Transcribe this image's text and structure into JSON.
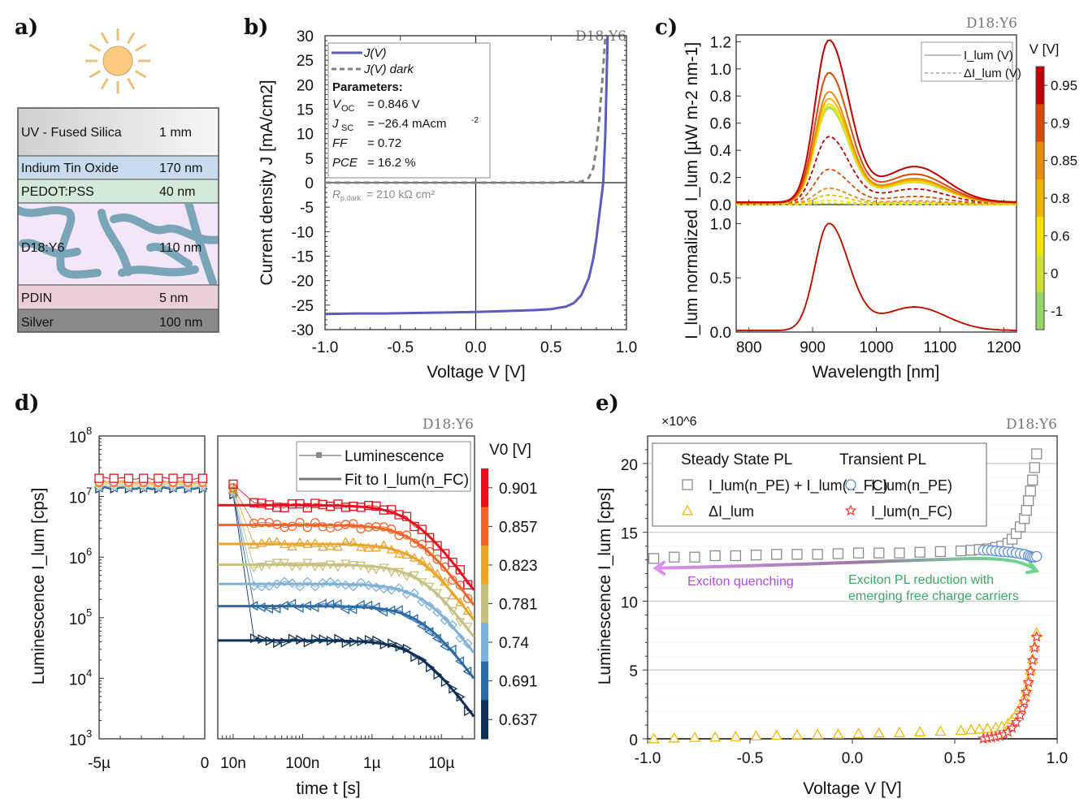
{
  "figure": {
    "panel_labels": [
      "a)",
      "b)",
      "c)",
      "d)",
      "e)"
    ],
    "sample_label": "D18:Y6"
  },
  "panel_a": {
    "icon": "sun-icon",
    "layers": [
      {
        "name": "UV - Fused Silica",
        "thickness": "1 mm",
        "color": "#e4e4e4"
      },
      {
        "name": "Indium Tin Oxide",
        "thickness": "170 nm",
        "color": "#c9dbef"
      },
      {
        "name": "PEDOT:PSS",
        "thickness": "40 nm",
        "color": "#d3eadb"
      },
      {
        "name": "D18:Y6",
        "thickness": "110 nm",
        "color": "#f3e6f8",
        "pattern_color": "#7aa5b8"
      },
      {
        "name": "PDIN",
        "thickness": "5 nm",
        "color": "#ebcfd8"
      },
      {
        "name": "Silver",
        "thickness": "100 nm",
        "color": "#8a8a8a"
      }
    ]
  },
  "chart_data": [
    {
      "id": "b",
      "type": "line",
      "title": "D18:Y6",
      "xlabel": "Voltage V [V]",
      "ylabel": "Current density J [mA/cm2]",
      "xlim": [
        -1.0,
        1.0
      ],
      "ylim": [
        -30,
        30
      ],
      "xticks": [
        "-1.0",
        "-0.5",
        "0.0",
        "0.5",
        "1.0"
      ],
      "yticks": [
        "-30",
        "-25",
        "-20",
        "-15",
        "-10",
        "-5",
        "0",
        "5",
        "10",
        "15",
        "20",
        "25",
        "30"
      ],
      "series": [
        {
          "name": "J(V)",
          "style": "solid",
          "color": "#5b5bbf",
          "x": [
            -1.0,
            -0.8,
            -0.6,
            -0.4,
            -0.2,
            0.0,
            0.2,
            0.4,
            0.5,
            0.6,
            0.65,
            0.7,
            0.75,
            0.78,
            0.8,
            0.82,
            0.84,
            0.846,
            0.86,
            0.875
          ],
          "y": [
            -26.8,
            -26.7,
            -26.7,
            -26.6,
            -26.5,
            -26.4,
            -26.2,
            -26.0,
            -25.8,
            -25.3,
            -24.6,
            -23.0,
            -19.5,
            -15.5,
            -11.5,
            -6.5,
            -1.5,
            0.0,
            10.0,
            30.0
          ]
        },
        {
          "name": "J(V) dark",
          "style": "dashed",
          "color": "#808080",
          "x": [
            -1.0,
            -0.5,
            0.0,
            0.5,
            0.7,
            0.75,
            0.78,
            0.8,
            0.82,
            0.84,
            0.86
          ],
          "y": [
            0.0,
            0.0,
            0.0,
            0.0,
            0.2,
            1.0,
            3.0,
            7.0,
            13.0,
            21.0,
            30.0
          ]
        }
      ],
      "legend": {
        "position": "top-left",
        "entries": [
          "J(V)",
          "J(V) dark"
        ]
      },
      "annotations": {
        "parameters_title": "Parameters:",
        "params": [
          {
            "label": "V",
            "sub": "OC",
            "value": "= 0.846 V"
          },
          {
            "label": "J",
            "sub": "SC",
            "value": "= −26.4 mAcm",
            "sup": "-2"
          },
          {
            "label": "FF",
            "sub": "",
            "value": "= 0.72"
          },
          {
            "label": "PCE",
            "sub": "",
            "value": "= 16.2 %"
          }
        ],
        "rp_label": "R",
        "rp_sub": "p,dark",
        "rp_value": "= 210 kΩ cm²"
      }
    },
    {
      "id": "c",
      "type": "line",
      "title": "D18:Y6",
      "xlabel": "Wavelength [nm]",
      "ylabel_top": "I_lum [µW m-2 nm-1]",
      "ylabel_bottom": "I_lum normalized",
      "xlim": [
        780,
        1220
      ],
      "xticks": [
        "800",
        "900",
        "1000",
        "1100",
        "1200"
      ],
      "ylim_top": [
        0,
        1.25
      ],
      "yticks_top": [
        "0.0",
        "0.2",
        "0.4",
        "0.6",
        "0.8",
        "1.0",
        "1.2"
      ],
      "ylim_bottom": [
        0,
        1.1
      ],
      "yticks_bottom": [
        "0.0",
        "0.5",
        "1.0"
      ],
      "peak_nm": 925,
      "colorbar": {
        "label": "V [V]",
        "ticks": [
          "0.95",
          "0.9",
          "0.85",
          "0.8",
          "0.6",
          "0",
          "-1"
        ],
        "colors": [
          "#c00000",
          "#d94a0a",
          "#e88a0c",
          "#efb800",
          "#f5e400",
          "#cde033",
          "#97d56a"
        ]
      },
      "series_solid_peaks": [
        {
          "V": 0.95,
          "peak": 1.21,
          "color": "#c00000"
        },
        {
          "V": 0.9,
          "peak": 0.97,
          "color": "#d94a0a"
        },
        {
          "V": 0.85,
          "peak": 0.83,
          "color": "#e88a0c"
        },
        {
          "V": 0.8,
          "peak": 0.78,
          "color": "#efb800"
        },
        {
          "V": 0.6,
          "peak": 0.74,
          "color": "#f5e400"
        },
        {
          "V": 0,
          "peak": 0.72,
          "color": "#cde033"
        },
        {
          "V": -1,
          "peak": 0.71,
          "color": "#97d56a"
        }
      ],
      "series_dashed_peaks": [
        {
          "V": 0.95,
          "peak": 0.5,
          "color": "#c00000"
        },
        {
          "V": 0.9,
          "peak": 0.26,
          "color": "#d94a0a"
        },
        {
          "V": 0.85,
          "peak": 0.12,
          "color": "#e88a0c"
        },
        {
          "V": 0.8,
          "peak": 0.07,
          "color": "#efb800"
        },
        {
          "V": 0.6,
          "peak": 0.03,
          "color": "#f5e400"
        },
        {
          "V": 0,
          "peak": 0.01,
          "color": "#cde033"
        }
      ],
      "legend": {
        "position": "top-right",
        "entries": [
          "I_lum (V)",
          "ΔI_lum (V)"
        ]
      }
    },
    {
      "id": "d",
      "type": "scatter",
      "title": "D18:Y6",
      "xlabel": "time t [s]",
      "ylabel": "Luminescence I_lum [cps]",
      "yscale": "log",
      "ylim": [
        1000,
        100000000
      ],
      "yticks": [
        "10^3",
        "10^4",
        "10^5",
        "10^6",
        "10^7",
        "10^8"
      ],
      "left_xticks": [
        "-5µ",
        "0"
      ],
      "right_xticks": [
        "10n",
        "100n",
        "1µ",
        "10µ"
      ],
      "right_xlim": [
        6e-09,
        3e-05
      ],
      "legend": {
        "position": "top-right",
        "entries": [
          "Luminescence",
          "Fit to I_lum(n_FC)"
        ]
      },
      "colorbar": {
        "label": "V0 [V]",
        "ticks": [
          "0.901",
          "0.857",
          "0.823",
          "0.781",
          "0.74",
          "0.691",
          "0.637"
        ],
        "colors": [
          "#e8101e",
          "#f0642a",
          "#eba52c",
          "#c6c181",
          "#7fb2d8",
          "#2a6aa6",
          "#0d2f55"
        ]
      },
      "series": [
        {
          "V0": 0.901,
          "plateau": 7200000,
          "tau": 4e-06,
          "marker": "square",
          "color": "#e8101e",
          "pre": 20000000
        },
        {
          "V0": 0.857,
          "plateau": 3400000,
          "tau": 4.5e-06,
          "marker": "circle",
          "color": "#f0642a",
          "pre": 17500000
        },
        {
          "V0": 0.823,
          "plateau": 1650000,
          "tau": 5e-06,
          "marker": "triangle-up",
          "color": "#eba52c",
          "pre": 16500000
        },
        {
          "V0": 0.781,
          "plateau": 750000,
          "tau": 5.5e-06,
          "marker": "triangle-down",
          "color": "#c6c181",
          "pre": 15500000
        },
        {
          "V0": 0.74,
          "plateau": 360000,
          "tau": 6e-06,
          "marker": "diamond",
          "color": "#7fb2d8",
          "pre": 14500000
        },
        {
          "V0": 0.691,
          "plateau": 155000,
          "tau": 5.5e-06,
          "marker": "triangle-left",
          "color": "#2a6aa6",
          "pre": 14000000
        },
        {
          "V0": 0.637,
          "plateau": 42000,
          "tau": 5e-06,
          "marker": "triangle-right",
          "color": "#0d2f55",
          "pre": 13500000
        }
      ]
    },
    {
      "id": "e",
      "type": "scatter",
      "title": "D18:Y6",
      "xlabel": "Voltage V [V]",
      "ylabel": "Luminescence I_lum [cps]",
      "multiplier": "×10^6",
      "xlim": [
        -1.0,
        1.0
      ],
      "ylim": [
        0,
        22
      ],
      "xticks": [
        "-1.0",
        "-0.5",
        "0.0",
        "0.5",
        "1.0"
      ],
      "yticks": [
        "0",
        "5",
        "10",
        "15",
        "20"
      ],
      "legend": {
        "position": "top",
        "group1_title": "Steady State PL",
        "group2_title": "Transient PL",
        "entries": [
          "I_lum(n_PE) + I_lum(n_FC)",
          "ΔI_lum",
          "I_lum(n_PE)",
          "I_lum(n_FC)"
        ]
      },
      "annotations": {
        "left_arrow": "Exciton quenching",
        "right_arrow_line1": "Exciton PL reduction with",
        "right_arrow_line2": "emerging free charge carriers"
      },
      "series": [
        {
          "name": "I_lum(n_PE) + I_lum(n_FC)",
          "marker": "square",
          "color": "#8c8c8c",
          "x": [
            -0.97,
            -0.87,
            -0.77,
            -0.67,
            -0.57,
            -0.47,
            -0.37,
            -0.27,
            -0.17,
            -0.07,
            0.03,
            0.13,
            0.23,
            0.33,
            0.43,
            0.53,
            0.58,
            0.62,
            0.66,
            0.7,
            0.73,
            0.76,
            0.78,
            0.8,
            0.82,
            0.84,
            0.85,
            0.86,
            0.87,
            0.88,
            0.89,
            0.9
          ],
          "y": [
            13.1,
            13.2,
            13.2,
            13.3,
            13.3,
            13.35,
            13.4,
            13.4,
            13.4,
            13.45,
            13.5,
            13.5,
            13.5,
            13.55,
            13.6,
            13.65,
            13.7,
            13.75,
            13.8,
            13.9,
            14.0,
            14.2,
            14.5,
            14.9,
            15.4,
            16.0,
            16.6,
            17.3,
            18.0,
            18.8,
            19.7,
            20.7
          ]
        },
        {
          "name": "ΔI_lum",
          "marker": "triangle",
          "color": "#f5b800",
          "x": [
            -0.97,
            -0.87,
            -0.77,
            -0.67,
            -0.57,
            -0.47,
            -0.37,
            -0.27,
            -0.17,
            -0.07,
            0.03,
            0.13,
            0.23,
            0.33,
            0.43,
            0.53,
            0.58,
            0.62,
            0.66,
            0.7,
            0.73,
            0.76,
            0.78,
            0.8,
            0.82,
            0.84,
            0.85,
            0.86,
            0.87,
            0.88,
            0.89,
            0.9
          ],
          "y": [
            0.0,
            0.05,
            0.1,
            0.12,
            0.15,
            0.2,
            0.25,
            0.28,
            0.3,
            0.33,
            0.38,
            0.42,
            0.45,
            0.5,
            0.55,
            0.6,
            0.65,
            0.7,
            0.75,
            0.8,
            0.9,
            1.1,
            1.4,
            1.8,
            2.3,
            3.0,
            3.6,
            4.3,
            5.0,
            5.8,
            6.7,
            7.7
          ]
        },
        {
          "name": "I_lum(n_PE)",
          "marker": "circle",
          "color": "#5b8fd6",
          "x": [
            0.64,
            0.66,
            0.68,
            0.7,
            0.72,
            0.74,
            0.76,
            0.78,
            0.8,
            0.82,
            0.84,
            0.86,
            0.87,
            0.88,
            0.89,
            0.9
          ],
          "y": [
            13.7,
            13.7,
            13.68,
            13.65,
            13.62,
            13.6,
            13.57,
            13.55,
            13.5,
            13.45,
            13.4,
            13.3,
            13.25,
            13.2,
            13.2,
            13.25
          ]
        },
        {
          "name": "I_lum(n_FC)",
          "marker": "star",
          "color": "#f03c3c",
          "x": [
            0.64,
            0.66,
            0.68,
            0.7,
            0.72,
            0.74,
            0.76,
            0.78,
            0.8,
            0.82,
            0.83,
            0.84,
            0.85,
            0.86,
            0.87,
            0.88,
            0.89,
            0.9
          ],
          "y": [
            0.0,
            0.05,
            0.1,
            0.15,
            0.2,
            0.3,
            0.5,
            0.8,
            1.2,
            1.7,
            2.2,
            2.7,
            3.4,
            4.1,
            4.9,
            5.7,
            6.6,
            7.4
          ]
        }
      ]
    }
  ]
}
